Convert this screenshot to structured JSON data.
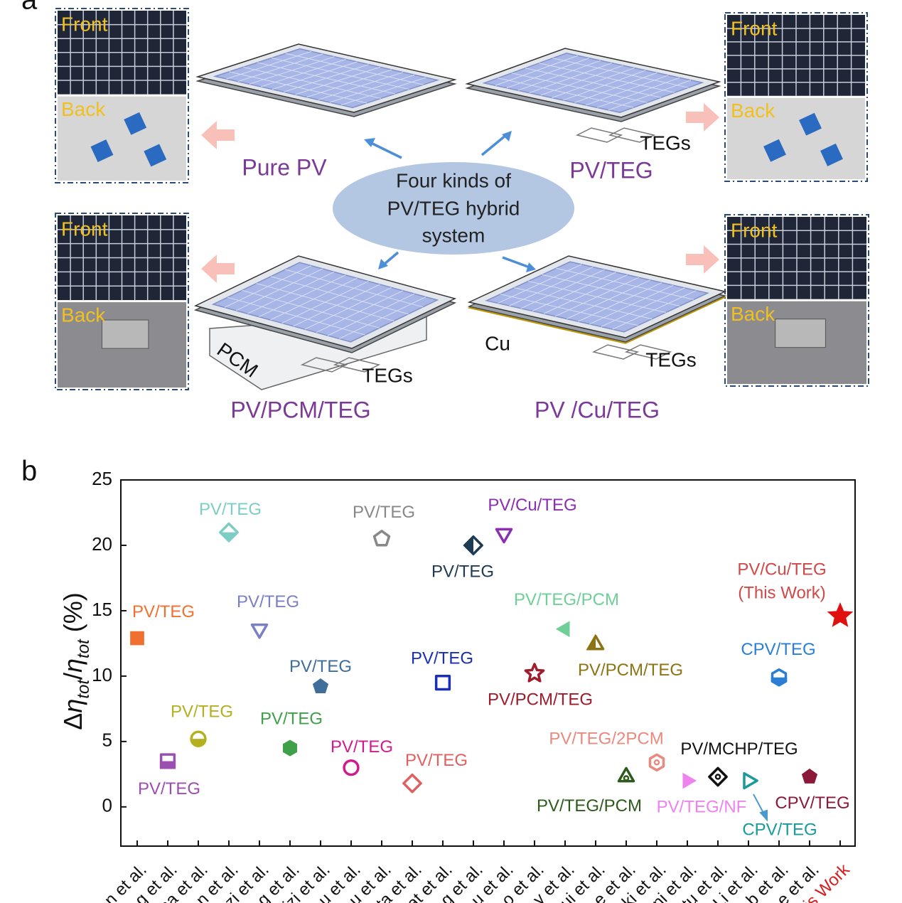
{
  "panel_a": {
    "label": "a",
    "photos": [
      {
        "front": "Front",
        "back": "Back"
      },
      {
        "front": "Front",
        "back": "Back"
      },
      {
        "front": "Front",
        "back": "Back"
      },
      {
        "front": "Front",
        "back": "Back"
      }
    ],
    "center": [
      "Four kinds of",
      "PV/TEG hybrid",
      "system"
    ],
    "systems": [
      {
        "name": "Pure PV"
      },
      {
        "name": "PV/TEG",
        "parts": [
          "TEGs"
        ]
      },
      {
        "name": "PV/PCM/TEG",
        "parts": [
          "PCM",
          "TEGs"
        ]
      },
      {
        "name": "PV /Cu/TEG",
        "parts": [
          "Cu",
          "TEGs"
        ]
      }
    ]
  },
  "chart_data": {
    "type": "scatter",
    "panel_label": "b",
    "y_label": [
      "Δ",
      "η",
      "tot",
      "/",
      "η",
      "tot",
      " (%)"
    ],
    "categories": [
      "n et al.",
      "g et al.",
      "na et al.",
      "n et al.",
      "zi et al.",
      "g et al.",
      "izi et al.",
      "u et al.",
      "u et al.",
      "ta et al.",
      "at et al.",
      "g et al.",
      "u et al.",
      "o et al.",
      "y et al.",
      "ui et al.",
      "e et al.",
      "ki et al.",
      "ni et al.",
      "tu et al.",
      "Li et al.",
      "b et al.",
      "e et al.",
      "is Work"
    ],
    "category_colors": [
      "#111",
      "#111",
      "#111",
      "#111",
      "#111",
      "#111",
      "#111",
      "#111",
      "#111",
      "#111",
      "#111",
      "#111",
      "#111",
      "#111",
      "#111",
      "#111",
      "#111",
      "#111",
      "#111",
      "#111",
      "#111",
      "#111",
      "#111",
      "#d42020"
    ],
    "values": [
      12.9,
      3.5,
      5.2,
      21.0,
      13.6,
      4.5,
      9.2,
      3.0,
      20.5,
      1.8,
      9.5,
      20.0,
      20.9,
      10.2,
      13.6,
      12.4,
      2.3,
      3.4,
      2.0,
      2.3,
      2.0,
      9.9,
      2.3,
      14.6
    ],
    "point_labels": [
      "PV/TEG",
      "PV/TEG",
      "PV/TEG",
      "PV/TEG",
      "PV/TEG",
      "PV/TEG",
      "PV/TEG",
      "PV/TEG",
      "PV/TEG",
      "PV/TEG",
      "PV/TEG",
      "PV/TEG",
      "PV/Cu/TEG",
      "PV/PCM/TEG",
      "PV/TEG/PCM",
      "PV/PCM/TEG",
      "PV/TEG/PCM",
      "PV/TEG/2PCM",
      "PV/TEG/NF",
      "PV/MCHP/TEG",
      "CPV/TEG",
      "CPV/TEG",
      "CPV/TEG",
      [
        "PV/Cu/TEG",
        "(This Work)"
      ]
    ],
    "colors": [
      "#f07030",
      "#9b4fb0",
      "#b5b01e",
      "#7ecdc4",
      "#7b7fc4",
      "#3fa04a",
      "#3e6e99",
      "#d01c8b",
      "#888888",
      "#e06060",
      "#1a2fb8",
      "#1e3a55",
      "#8a2fb0",
      "#a01c2c",
      "#6fcf97",
      "#8c7414",
      "#2e5a1c",
      "#e88a80",
      "#ee82ee",
      "#111111",
      "#1a9a9a",
      "#2a7fd4",
      "#8b1a3a",
      "#e01010"
    ],
    "markers": [
      "square-filled",
      "square-half",
      "circle-half",
      "diamond-half",
      "triangledown-open",
      "hexagon-filled",
      "pentagon-filled",
      "circle-open",
      "pentagon-open",
      "diamond-open",
      "square-open",
      "diamond-halfleft",
      "triangledown-open",
      "star-open",
      "triangleleft-filled",
      "triangleup-halfleft",
      "triangleup-dot",
      "hexagon-dot",
      "triangleright-filled",
      "diamond-dot",
      "triangleright-open",
      "hexagon-half",
      "pentagon-filled",
      "star-filled"
    ],
    "ylim": [
      -3,
      25
    ],
    "yticks": [
      0,
      5,
      10,
      15,
      20,
      25
    ]
  }
}
